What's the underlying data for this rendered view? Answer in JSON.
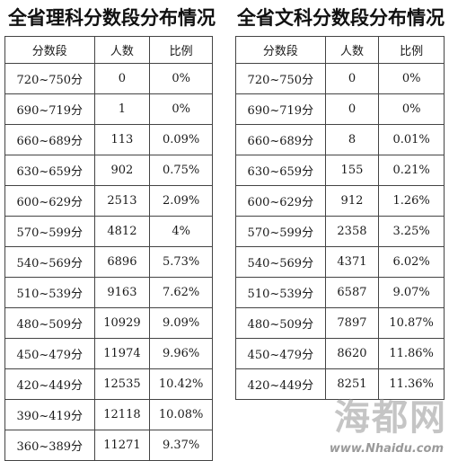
{
  "left_table": {
    "title": "全省理科分数段分布情况",
    "headers": [
      "分数段",
      "人数",
      "比例"
    ],
    "rows": [
      [
        "720~750分",
        "0",
        "0%"
      ],
      [
        "690~719分",
        "1",
        "0%"
      ],
      [
        "660~689分",
        "113",
        "0.09%"
      ],
      [
        "630~659分",
        "902",
        "0.75%"
      ],
      [
        "600~629分",
        "2513",
        "2.09%"
      ],
      [
        "570~599分",
        "4812",
        "4%"
      ],
      [
        "540~569分",
        "6896",
        "5.73%"
      ],
      [
        "510~539分",
        "9163",
        "7.62%"
      ],
      [
        "480~509分",
        "10929",
        "9.09%"
      ],
      [
        "450~479分",
        "11974",
        "9.96%"
      ],
      [
        "420~449分",
        "12535",
        "10.42%"
      ],
      [
        "390~419分",
        "12118",
        "10.08%"
      ],
      [
        "360~389分",
        "11271",
        "9.37%"
      ]
    ]
  },
  "right_table": {
    "title": "全省文科分数段分布情况",
    "headers": [
      "分数段",
      "人数",
      "比例"
    ],
    "rows": [
      [
        "720~750分",
        "0",
        "0%"
      ],
      [
        "690~719分",
        "0",
        "0%"
      ],
      [
        "660~689分",
        "8",
        "0.01%"
      ],
      [
        "630~659分",
        "155",
        "0.21%"
      ],
      [
        "600~629分",
        "912",
        "1.26%"
      ],
      [
        "570~599分",
        "2358",
        "3.25%"
      ],
      [
        "540~569分",
        "4371",
        "6.02%"
      ],
      [
        "510~539分",
        "6587",
        "9.07%"
      ],
      [
        "480~509分",
        "7897",
        "10.87%"
      ],
      [
        "450~479分",
        "8620",
        "11.86%"
      ],
      [
        "420~449分",
        "8251",
        "11.36%"
      ]
    ]
  },
  "watermark": {
    "glyphs": "海都网",
    "url": "www.Nhaidu.com"
  }
}
